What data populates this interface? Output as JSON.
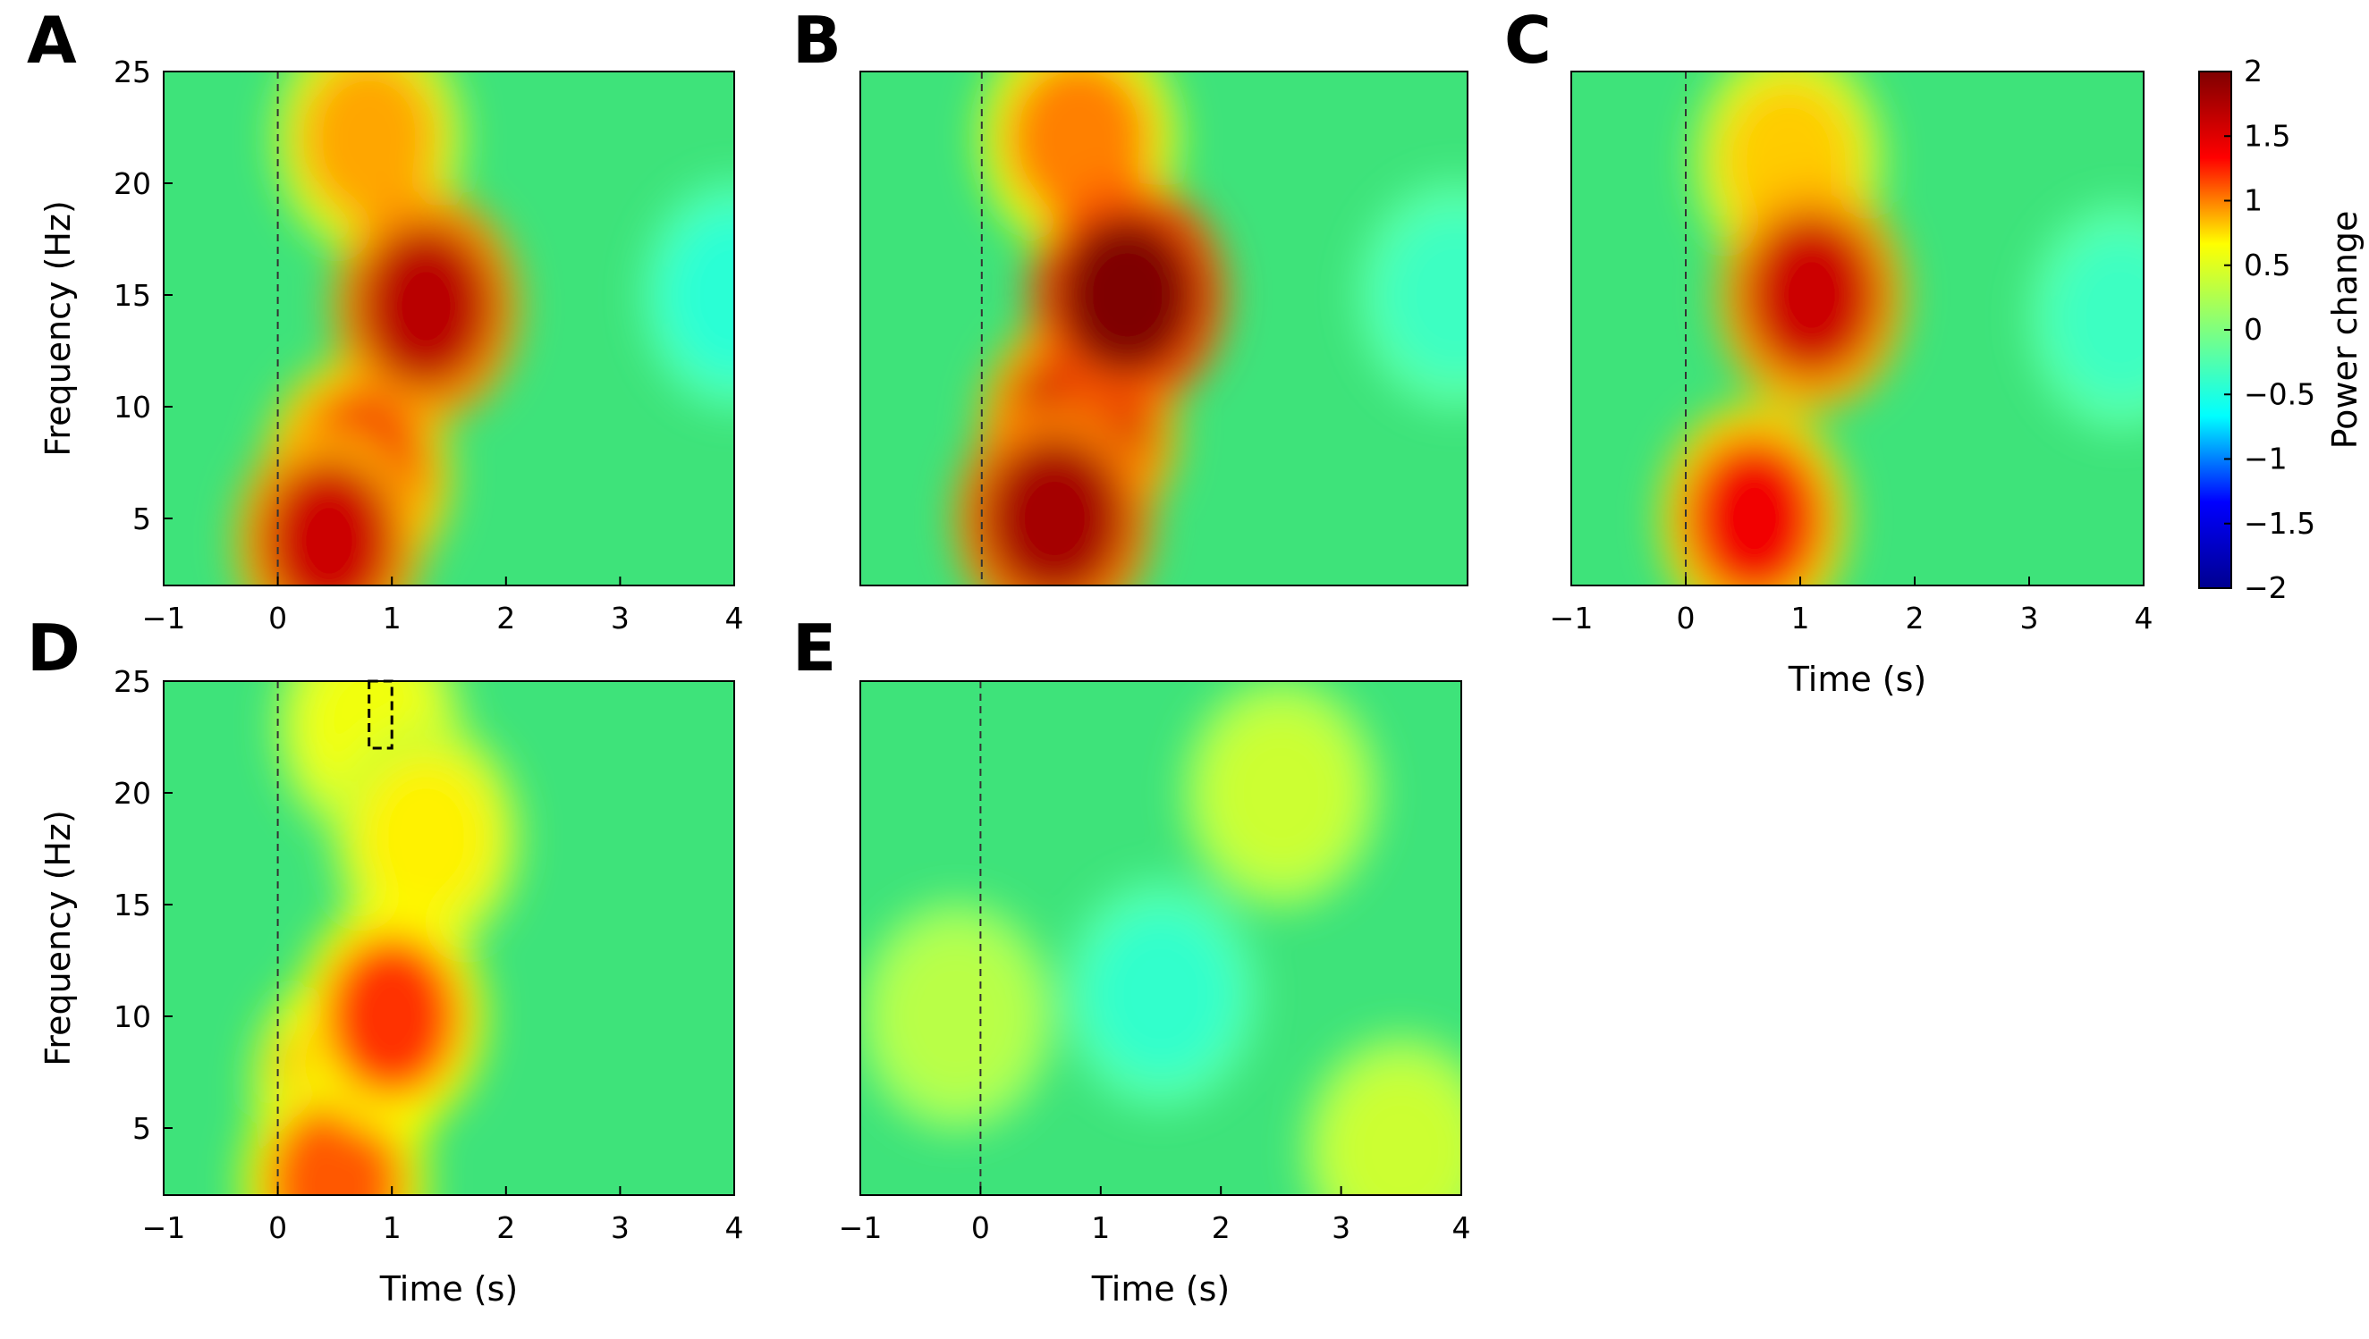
{
  "colors": {
    "colormap": [
      "#00008f",
      "#0000ff",
      "#00ffff",
      "#7fff7f",
      "#ffff00",
      "#ff0000",
      "#7f0000"
    ],
    "baseline_field": "#3ee37a",
    "axis": "#000000"
  },
  "colorbar": {
    "label": "Power change",
    "ticks": [
      "2",
      "1.5",
      "1",
      "0.5",
      "0",
      "−0.5",
      "−1",
      "−1.5",
      "−2"
    ],
    "range": [
      -2,
      2
    ]
  },
  "chart_data": [
    {
      "panel": "A",
      "type": "heatmap",
      "x_range": [
        -1,
        4
      ],
      "y_range": [
        2,
        25
      ],
      "x_ticks": [
        "−1",
        "0",
        "1",
        "2",
        "3",
        "4"
      ],
      "y_ticks": [
        "25",
        "20",
        "15",
        "10",
        "5"
      ],
      "ylabel": "Frequency (Hz)",
      "xlabel": "",
      "event_line_time": 0,
      "features": [
        {
          "t": 0.45,
          "f": 4,
          "value": 1.6
        },
        {
          "t": 0.7,
          "f": 7,
          "value": 1.4
        },
        {
          "t": 1.3,
          "f": 14.5,
          "value": 1.7
        },
        {
          "t": 0.8,
          "f": 22,
          "value": 0.9
        },
        {
          "t": 4.0,
          "f": 15,
          "value": -0.45
        }
      ]
    },
    {
      "panel": "B",
      "type": "heatmap",
      "x_range": [
        -1,
        4
      ],
      "y_range": [
        2,
        25
      ],
      "x_ticks": [],
      "y_ticks": [],
      "ylabel": "",
      "xlabel": "",
      "event_line_time": 0,
      "features": [
        {
          "t": 0.6,
          "f": 5,
          "value": 1.8
        },
        {
          "t": 0.8,
          "f": 9,
          "value": 1.6
        },
        {
          "t": 1.2,
          "f": 15,
          "value": 2.0
        },
        {
          "t": 0.8,
          "f": 22,
          "value": 1.0
        },
        {
          "t": 3.9,
          "f": 15,
          "value": -0.35
        }
      ]
    },
    {
      "panel": "C",
      "type": "heatmap",
      "x_range": [
        -1,
        4
      ],
      "y_range": [
        2,
        25
      ],
      "x_ticks": [
        "−1",
        "0",
        "1",
        "2",
        "3",
        "4"
      ],
      "y_ticks": [],
      "ylabel": "",
      "xlabel": "Time (s)",
      "event_line_time": 0,
      "features": [
        {
          "t": 0.6,
          "f": 5,
          "value": 1.4
        },
        {
          "t": 1.1,
          "f": 15,
          "value": 1.6
        },
        {
          "t": 0.9,
          "f": 21,
          "value": 0.8
        },
        {
          "t": 3.8,
          "f": 14,
          "value": -0.35
        }
      ]
    },
    {
      "panel": "D",
      "type": "heatmap",
      "x_range": [
        -1,
        4
      ],
      "y_range": [
        2,
        25
      ],
      "x_ticks": [
        "−1",
        "0",
        "1",
        "2",
        "3",
        "4"
      ],
      "y_ticks": [
        "25",
        "20",
        "15",
        "10",
        "5"
      ],
      "ylabel": "Frequency (Hz)",
      "xlabel": "Time (s)",
      "event_line_time": 0,
      "highlight_box": {
        "t": [
          0.8,
          1.0
        ],
        "f": [
          22,
          25
        ]
      },
      "features": [
        {
          "t": 1.0,
          "f": 10,
          "value": 1.2
        },
        {
          "t": 0.6,
          "f": 7,
          "value": 0.9
        },
        {
          "t": 0.5,
          "f": 2.5,
          "value": 1.1
        },
        {
          "t": 1.3,
          "f": 18,
          "value": 0.7
        },
        {
          "t": 0.8,
          "f": 23,
          "value": 0.6
        }
      ]
    },
    {
      "panel": "E",
      "type": "heatmap",
      "x_range": [
        -1,
        4
      ],
      "y_range": [
        2,
        25
      ],
      "x_ticks": [
        "−1",
        "0",
        "1",
        "2",
        "3",
        "4"
      ],
      "y_ticks": [],
      "ylabel": "",
      "xlabel": "Time (s)",
      "event_line_time": 0,
      "features": [
        {
          "t": 1.5,
          "f": 11,
          "value": -0.4
        },
        {
          "t": 2.5,
          "f": 20,
          "value": 0.4
        },
        {
          "t": 3.5,
          "f": 4,
          "value": 0.4
        },
        {
          "t": -0.2,
          "f": 10,
          "value": 0.3
        }
      ]
    }
  ]
}
